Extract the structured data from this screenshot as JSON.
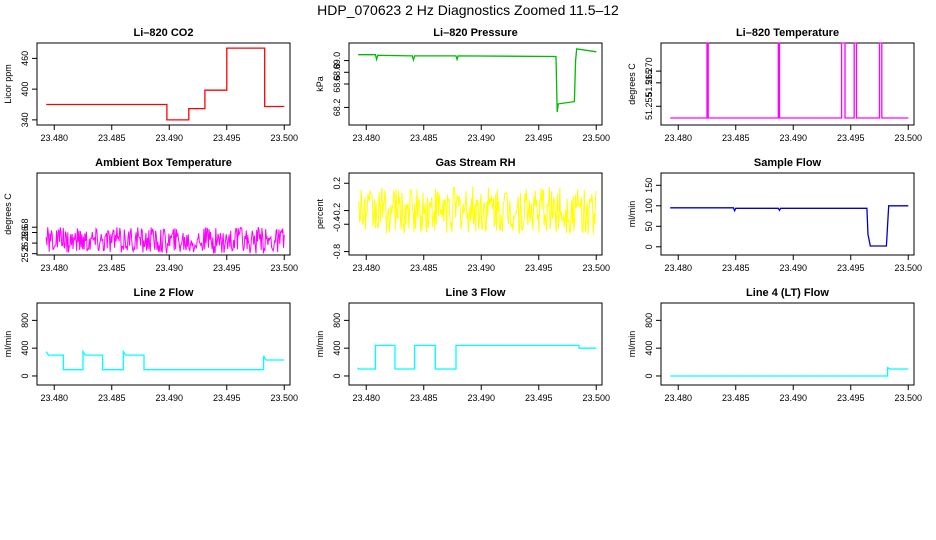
{
  "page": {
    "title": "HDP_070623  2 Hz Diagnostics Zoomed 11.5–12"
  },
  "chart_data": [
    {
      "type": "line",
      "title": "Li–820 CO2",
      "ylabel": "Licor ppm",
      "xlabel": "",
      "xlim": [
        23.4785,
        23.5005
      ],
      "ylim": [
        330,
        490
      ],
      "xticks": [
        "23.480",
        "23.485",
        "23.490",
        "23.495",
        "23.500"
      ],
      "yticks": [
        "340",
        "400",
        "460"
      ],
      "grid": false,
      "color": "#ff0000",
      "series": [
        {
          "x": [
            23.4793,
            23.4898,
            23.4898,
            23.4917,
            23.4917,
            23.4931,
            23.4931,
            23.495,
            23.495,
            23.4983,
            23.4983,
            23.5
          ],
          "y": [
            370,
            370,
            340,
            340,
            362,
            362,
            398,
            398,
            480,
            480,
            366,
            366
          ]
        }
      ]
    },
    {
      "type": "line",
      "title": "Li–820 Pressure",
      "ylabel": "kPa",
      "xlabel": "",
      "xlim": [
        23.4785,
        23.5005
      ],
      "ylim": [
        67.9,
        69.3
      ],
      "xticks": [
        "23.480",
        "23.485",
        "23.490",
        "23.495",
        "23.500"
      ],
      "yticks": [
        "68.2",
        "68.6",
        "68.8",
        "69.0"
      ],
      "grid": false,
      "color": "#00bb00",
      "series": [
        {
          "x": [
            23.4793,
            23.4808,
            23.4809,
            23.481,
            23.484,
            23.4841,
            23.4842,
            23.4878,
            23.4879,
            23.488,
            23.4965,
            23.4966,
            23.4967,
            23.4981,
            23.4982,
            23.4983,
            23.5
          ],
          "y": [
            69.1,
            69.1,
            69.02,
            69.09,
            69.08,
            69.01,
            69.08,
            69.08,
            69.02,
            69.08,
            69.07,
            68.12,
            68.26,
            68.3,
            69.0,
            69.2,
            69.15
          ]
        }
      ]
    },
    {
      "type": "line",
      "title": "Li–820 Temperature",
      "ylabel": "degrees C",
      "xlabel": "",
      "xlim": [
        23.4785,
        23.5005
      ],
      "ylim": [
        51.247,
        51.282
      ],
      "xticks": [
        "23.480",
        "23.485",
        "23.490",
        "23.495",
        "23.500"
      ],
      "yticks": [
        "51.255",
        "51.265",
        "51.270"
      ],
      "grid": false,
      "color": "#ff00ff",
      "series": [
        {
          "x": [
            23.4793,
            23.4825,
            23.4825,
            23.4826,
            23.4826,
            23.4887,
            23.4887,
            23.4888,
            23.4888,
            23.4942,
            23.4942,
            23.4945,
            23.4945,
            23.4953,
            23.4953,
            23.4955,
            23.4955,
            23.4975,
            23.4975,
            23.4977,
            23.4977,
            23.5
          ],
          "y": [
            51.25,
            51.25,
            51.282,
            51.282,
            51.25,
            51.25,
            51.282,
            51.282,
            51.25,
            51.25,
            51.282,
            51.282,
            51.25,
            51.25,
            51.282,
            51.282,
            51.25,
            51.25,
            51.282,
            51.282,
            51.25,
            51.25
          ]
        }
      ]
    },
    {
      "type": "line",
      "title": "Ambient Box Temperature",
      "ylabel": "degrees C",
      "xlabel": "",
      "xlim": [
        23.4785,
        23.5005
      ],
      "ylim": [
        25.75,
        28.85
      ],
      "xticks": [
        "23.480",
        "23.485",
        "23.490",
        "23.495",
        "23.500"
      ],
      "yticks": [
        "25.8",
        "26.2",
        "26.6",
        "26.8"
      ],
      "grid": false,
      "color": "#ff00ff",
      "noise": {
        "x_start": 23.4793,
        "x_end": 23.5,
        "mean": 26.3,
        "amplitude": 0.5
      }
    },
    {
      "type": "line",
      "title": "Gas Stream RH",
      "ylabel": "percent",
      "xlabel": "",
      "xlim": [
        23.4785,
        23.5005
      ],
      "ylim": [
        -0.85,
        0.35
      ],
      "xticks": [
        "23.480",
        "23.485",
        "23.490",
        "23.495",
        "23.500"
      ],
      "yticks": [
        "-0.8",
        "-0.4",
        "-0.2",
        "0.2"
      ],
      "grid": false,
      "color": "#ffff00",
      "noise": {
        "x_start": 23.4793,
        "x_end": 23.5,
        "mean": -0.2,
        "amplitude": 0.35
      }
    },
    {
      "type": "line",
      "title": "Sample Flow",
      "ylabel": "ml/min",
      "xlabel": "",
      "xlim": [
        23.4785,
        23.5005
      ],
      "ylim": [
        -20,
        180
      ],
      "xticks": [
        "23.480",
        "23.485",
        "23.490",
        "23.495",
        "23.500"
      ],
      "yticks": [
        "0",
        "50",
        "100",
        "150"
      ],
      "grid": false,
      "color": "#0000cc",
      "series": [
        {
          "x": [
            23.4793,
            23.4848,
            23.4849,
            23.485,
            23.4887,
            23.4888,
            23.4889,
            23.4964,
            23.4965,
            23.4967,
            23.4981,
            23.4983,
            23.5
          ],
          "y": [
            95,
            95,
            88,
            94,
            94,
            89,
            94,
            94,
            30,
            2,
            2,
            100,
            100
          ]
        }
      ]
    },
    {
      "type": "line",
      "title": "Line 2 Flow",
      "ylabel": "ml/min",
      "xlabel": "",
      "xlim": [
        23.4785,
        23.5005
      ],
      "ylim": [
        -130,
        1050
      ],
      "xticks": [
        "23.480",
        "23.485",
        "23.490",
        "23.495",
        "23.500"
      ],
      "yticks": [
        "0",
        "400",
        "800"
      ],
      "grid": false,
      "color": "#00ffff",
      "series": [
        {
          "x": [
            23.4793,
            23.4795,
            23.4808,
            23.4808,
            23.4825,
            23.4825,
            23.4827,
            23.4842,
            23.4842,
            23.486,
            23.486,
            23.4862,
            23.4878,
            23.4878,
            23.4982,
            23.4982,
            23.4984,
            23.5
          ],
          "y": [
            350,
            300,
            300,
            90,
            90,
            350,
            300,
            300,
            90,
            90,
            350,
            300,
            300,
            90,
            90,
            290,
            230,
            230
          ]
        }
      ]
    },
    {
      "type": "line",
      "title": "Line 3 Flow",
      "ylabel": "ml/min",
      "xlabel": "",
      "xlim": [
        23.4785,
        23.5005
      ],
      "ylim": [
        -130,
        1050
      ],
      "xticks": [
        "23.480",
        "23.485",
        "23.490",
        "23.495",
        "23.500"
      ],
      "yticks": [
        "0",
        "400",
        "800"
      ],
      "grid": false,
      "color": "#00ffff",
      "series": [
        {
          "x": [
            23.4793,
            23.4793,
            23.4808,
            23.4808,
            23.4825,
            23.4825,
            23.4842,
            23.4842,
            23.486,
            23.486,
            23.4878,
            23.4878,
            23.4985,
            23.4985,
            23.5
          ],
          "y": [
            120,
            100,
            100,
            440,
            440,
            100,
            100,
            440,
            440,
            100,
            100,
            440,
            440,
            400,
            400
          ]
        }
      ]
    },
    {
      "type": "line",
      "title": "Line 4 (LT) Flow",
      "ylabel": "ml/min",
      "xlabel": "",
      "xlim": [
        23.4785,
        23.5005
      ],
      "ylim": [
        -130,
        1050
      ],
      "xticks": [
        "23.480",
        "23.485",
        "23.490",
        "23.495",
        "23.500"
      ],
      "yticks": [
        "0",
        "400",
        "800"
      ],
      "grid": false,
      "color": "#00ffff",
      "series": [
        {
          "x": [
            23.4793,
            23.4982,
            23.4982,
            23.4984,
            23.5
          ],
          "y": [
            0,
            0,
            120,
            100,
            100
          ]
        }
      ]
    }
  ]
}
